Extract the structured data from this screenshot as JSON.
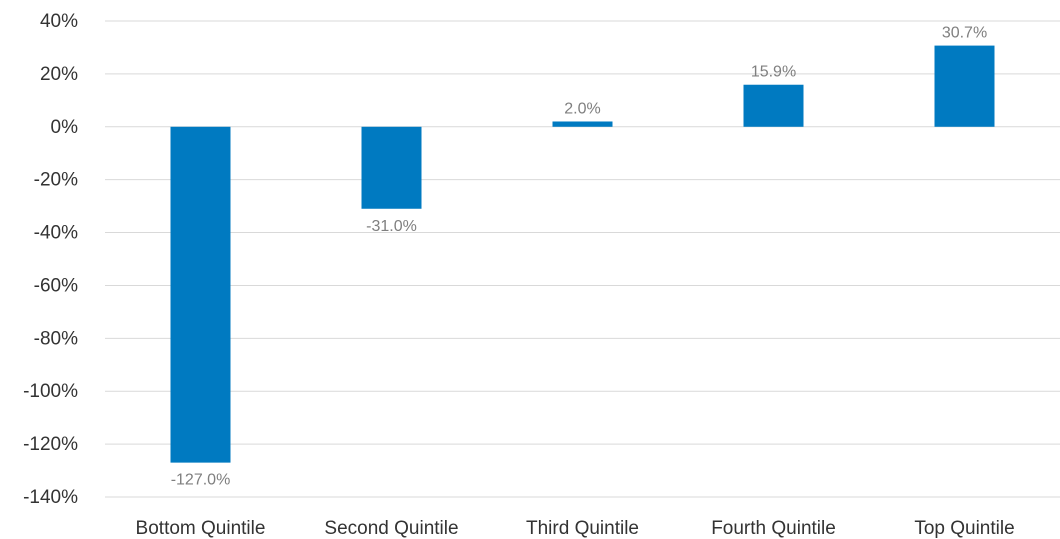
{
  "chart_data": {
    "type": "bar",
    "categories": [
      "Bottom Quintile",
      "Second Quintile",
      "Third Quintile",
      "Fourth Quintile",
      "Top Quintile"
    ],
    "values": [
      -127.0,
      -31.0,
      2.0,
      15.9,
      30.7
    ],
    "data_labels": [
      "-127.0%",
      "-31.0%",
      "2.0%",
      "15.9%",
      "30.7%"
    ],
    "ylim": [
      -140,
      40
    ],
    "yticks": [
      40,
      20,
      0,
      -20,
      -40,
      -60,
      -80,
      -100,
      -120,
      -140
    ],
    "ytick_labels": [
      "40%",
      "20%",
      "0%",
      "-20%",
      "-40%",
      "-60%",
      "-80%",
      "-100%",
      "-120%",
      "-140%"
    ],
    "grid": true,
    "title": "",
    "xlabel": "",
    "ylabel": "",
    "bar_color": "#007ac1",
    "grid_color": "#d9d9d9",
    "label_color": "#7f7f7f"
  }
}
